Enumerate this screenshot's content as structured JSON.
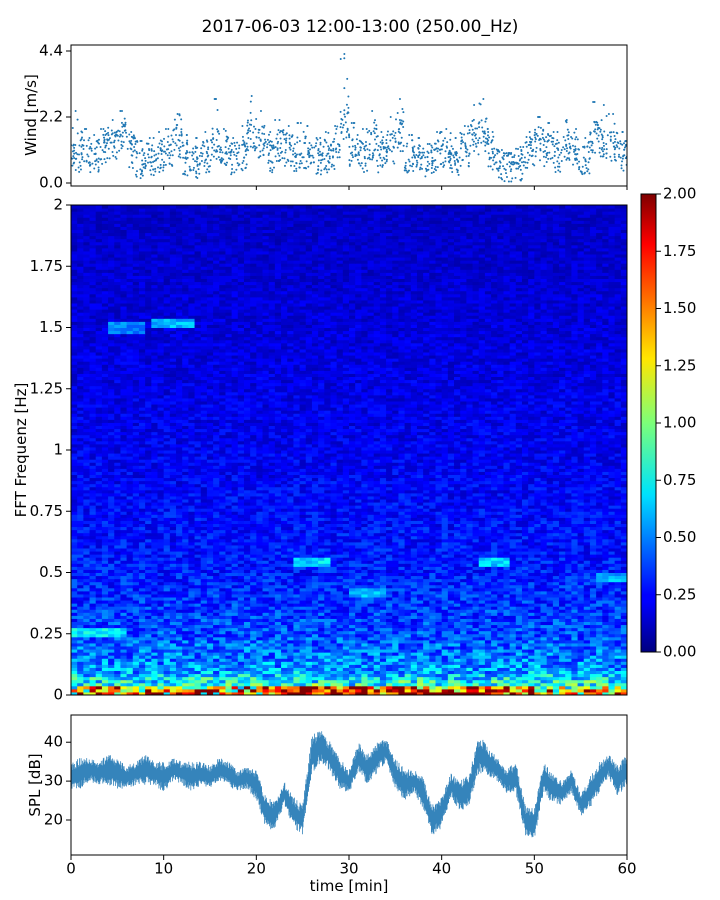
{
  "figure": {
    "title": "2017-06-03 12:00-13:00 (250.00_Hz)"
  },
  "chart_data": [
    {
      "type": "scatter",
      "name": "wind",
      "ylabel": "Wind [m/s]",
      "xlim": [
        0,
        60
      ],
      "ylim": [
        -0.1,
        4.6
      ],
      "yticks": [
        0.0,
        2.2,
        4.4
      ],
      "ytick_labels": [
        "0.0",
        "2.2",
        "4.4"
      ],
      "color": "#1f77b4",
      "x": [
        0.5,
        1.5,
        2.5,
        3.5,
        4.5,
        5.5,
        6.5,
        7.5,
        8.5,
        9.5,
        10.5,
        11.5,
        12.5,
        13.5,
        14.5,
        15.5,
        16.5,
        17.5,
        18.5,
        19.5,
        20.5,
        21.5,
        22.5,
        23.5,
        24.5,
        25.5,
        26.5,
        27.5,
        28.5,
        29.5,
        30.5,
        31.5,
        32.5,
        33.5,
        34.5,
        35.5,
        36.5,
        37.5,
        38.5,
        39.5,
        40.5,
        41.5,
        42.5,
        43.5,
        44.5,
        45.5,
        46.5,
        47.5,
        48.5,
        49.5,
        50.5,
        51.5,
        52.5,
        53.5,
        54.5,
        55.5,
        56.5,
        57.5,
        58.5,
        59.5
      ],
      "y": [
        0.8,
        1.0,
        0.9,
        1.1,
        1.3,
        1.6,
        1.0,
        0.7,
        0.8,
        0.9,
        1.1,
        1.4,
        0.8,
        0.7,
        0.9,
        1.3,
        1.0,
        0.8,
        0.9,
        1.6,
        1.4,
        0.9,
        1.2,
        1.1,
        0.9,
        1.0,
        0.8,
        0.9,
        1.0,
        2.0,
        1.1,
        0.9,
        1.3,
        0.9,
        1.2,
        1.6,
        0.9,
        0.8,
        0.7,
        0.9,
        1.0,
        0.8,
        1.1,
        1.5,
        1.6,
        1.0,
        0.6,
        0.5,
        0.6,
        1.0,
        1.3,
        1.1,
        0.9,
        1.2,
        1.0,
        0.8,
        1.5,
        1.3,
        1.2,
        0.9
      ],
      "max_y": [
        2.4,
        1.8,
        1.6,
        1.8,
        2.1,
        2.4,
        1.7,
        1.4,
        1.5,
        1.7,
        1.8,
        2.3,
        1.6,
        1.5,
        1.7,
        2.8,
        1.8,
        1.5,
        1.9,
        2.9,
        2.4,
        1.7,
        2.1,
        1.9,
        2.0,
        1.9,
        1.5,
        1.7,
        1.9,
        4.3,
        2.0,
        1.8,
        2.4,
        1.7,
        2.2,
        2.8,
        1.6,
        1.5,
        1.3,
        1.7,
        1.8,
        1.5,
        1.9,
        2.6,
        2.8,
        1.7,
        1.1,
        1.0,
        1.2,
        1.7,
        2.2,
        2.0,
        1.7,
        2.1,
        1.8,
        1.5,
        2.7,
        2.6,
        2.3,
        1.7
      ]
    },
    {
      "type": "heatmap",
      "name": "spectrogram",
      "ylabel": "FFT Frequenz [Hz]",
      "xlim": [
        0,
        60
      ],
      "ylim": [
        0,
        2
      ],
      "yticks": [
        0,
        0.25,
        0.5,
        0.75,
        1,
        1.25,
        1.5,
        1.75,
        2
      ],
      "ytick_labels": [
        "0",
        "0.25",
        "0.5",
        "0.75",
        "1",
        "1.25",
        "1.5",
        "1.75",
        "2"
      ],
      "colormap": "jet",
      "colorbar": {
        "vmin": 0.0,
        "vmax": 2.0,
        "ticks": [
          0.0,
          0.25,
          0.5,
          0.75,
          1.0,
          1.25,
          1.5,
          1.75,
          2.0
        ],
        "tick_labels": [
          "0.00",
          "0.25",
          "0.50",
          "0.75",
          "1.00",
          "1.25",
          "1.50",
          "1.75",
          "2.00"
        ]
      },
      "freq_levels": [
        [
          0.0,
          1.3
        ],
        [
          0.04,
          0.85
        ],
        [
          0.1,
          0.55
        ],
        [
          0.25,
          0.4
        ],
        [
          0.5,
          0.3
        ],
        [
          1.0,
          0.22
        ],
        [
          2.0,
          0.14
        ]
      ],
      "bright_bands": [
        {
          "t0": 4,
          "t1": 8,
          "f": 1.5,
          "v": 0.5
        },
        {
          "t0": 9,
          "t1": 13,
          "f": 1.52,
          "v": 0.6
        },
        {
          "t0": 24,
          "t1": 28,
          "f": 0.54,
          "v": 0.7
        },
        {
          "t0": 30,
          "t1": 34,
          "f": 0.42,
          "v": 0.6
        },
        {
          "t0": 44,
          "t1": 47,
          "f": 0.54,
          "v": 0.65
        },
        {
          "t0": 57,
          "t1": 60,
          "f": 0.48,
          "v": 0.6
        },
        {
          "t0": 0,
          "t1": 6,
          "f": 0.26,
          "v": 0.7
        }
      ]
    },
    {
      "type": "line",
      "name": "spl",
      "xlabel": "time [min]",
      "ylabel": "SPL [dB]",
      "xlim": [
        0,
        60
      ],
      "ylim": [
        11,
        47
      ],
      "xticks": [
        0,
        10,
        20,
        30,
        40,
        50,
        60
      ],
      "xtick_labels": [
        "0",
        "10",
        "20",
        "30",
        "40",
        "50",
        "60"
      ],
      "yticks": [
        20,
        30,
        40
      ],
      "ytick_labels": [
        "20",
        "30",
        "40"
      ],
      "color": "#1f77b4",
      "x": [
        0,
        1,
        2,
        3,
        4,
        5,
        6,
        7,
        8,
        9,
        10,
        11,
        12,
        13,
        14,
        15,
        16,
        17,
        18,
        19,
        20,
        21,
        22,
        23,
        24,
        25,
        26,
        27,
        28,
        29,
        30,
        31,
        32,
        33,
        34,
        35,
        36,
        37,
        38,
        39,
        40,
        41,
        42,
        43,
        44,
        45,
        46,
        47,
        48,
        49,
        50,
        51,
        52,
        53,
        54,
        55,
        56,
        57,
        58,
        59,
        60
      ],
      "y": [
        31,
        32,
        33,
        32,
        33,
        32,
        31,
        32,
        33,
        32,
        31,
        33,
        32,
        31,
        32,
        31,
        33,
        32,
        30,
        31,
        29,
        22,
        21,
        27,
        22,
        20,
        37,
        39,
        36,
        32,
        30,
        36,
        33,
        36,
        38,
        32,
        29,
        30,
        27,
        20,
        22,
        29,
        26,
        28,
        37,
        35,
        33,
        30,
        31,
        20,
        19,
        31,
        28,
        27,
        30,
        24,
        27,
        31,
        34,
        30,
        33
      ],
      "spread": [
        4,
        4,
        3,
        3,
        4,
        4,
        3,
        3,
        4,
        3,
        4,
        3,
        3,
        4,
        3,
        3,
        3,
        3,
        3,
        3,
        4,
        4,
        4,
        3,
        4,
        4,
        5,
        4,
        4,
        4,
        3,
        4,
        4,
        4,
        3,
        4,
        4,
        3,
        4,
        4,
        4,
        3,
        4,
        4,
        5,
        4,
        3,
        3,
        4,
        4,
        4,
        4,
        4,
        3,
        3,
        3,
        4,
        4,
        3,
        4,
        4
      ]
    }
  ]
}
